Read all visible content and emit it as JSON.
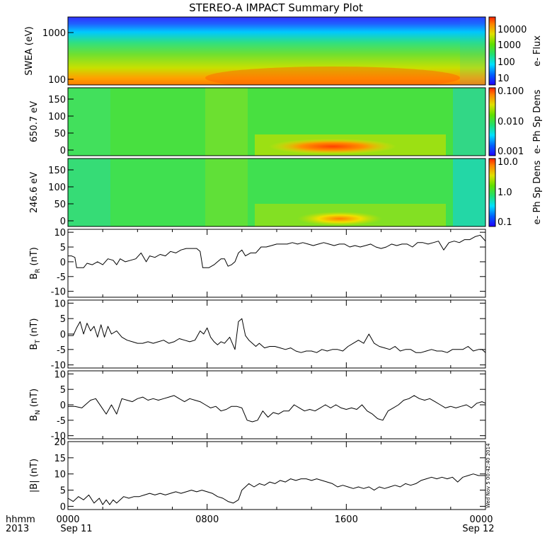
{
  "page": {
    "title": "STEREO-A IMPACT Summary Plot",
    "stamp": "Wed Nov  5 00:42:40 2014"
  },
  "footer": {
    "left_top": "hhmm",
    "left_bottom": "2013",
    "ticks": [
      {
        "time": "0000",
        "date": "Sep 11"
      },
      {
        "time": "0800",
        "date": ""
      },
      {
        "time": "1600",
        "date": ""
      },
      {
        "time": "0000",
        "date": "Sep 12"
      }
    ]
  },
  "chart_data": [
    {
      "type": "heatmap",
      "ylabel": "SWEA (eV)",
      "yscale": "log",
      "ylim": [
        90,
        2000
      ],
      "yticks": [
        "100",
        "1000"
      ],
      "colorbar": {
        "label": "e- Flux",
        "scale": "log",
        "range": [
          5,
          60000
        ],
        "ticks": [
          "10",
          "100",
          "1000",
          "10000"
        ]
      },
      "colors": {
        "low": "#2020ff",
        "mid": "#40e040",
        "high": "#ff6000"
      }
    },
    {
      "type": "heatmap",
      "ylabel": "650.7 eV",
      "ylim": [
        0,
        180
      ],
      "yticks": [
        "0",
        "50",
        "100",
        "150"
      ],
      "colorbar": {
        "label": "e- Ph Sp Dens",
        "scale": "log",
        "range": [
          0.001,
          0.1
        ],
        "ticks": [
          "0.001",
          "0.010",
          "0.100"
        ]
      }
    },
    {
      "type": "heatmap",
      "ylabel": "246.6 eV",
      "ylim": [
        0,
        180
      ],
      "yticks": [
        "0",
        "50",
        "100",
        "150"
      ],
      "colorbar": {
        "label": "e- Ph Sp Dens",
        "scale": "log",
        "range": [
          0.1,
          10
        ],
        "ticks": [
          "0.1",
          "1.0",
          "10.0"
        ]
      }
    },
    {
      "type": "line",
      "ylabel": "B",
      "ylabel_sub": "R",
      "ylabel_unit": " (nT)",
      "ylim": [
        -12,
        11
      ],
      "yticks": [
        "-10",
        "-5",
        "0",
        "5",
        "10"
      ],
      "x_hours": [
        0,
        0.2,
        0.4,
        0.5,
        0.9,
        1.1,
        1.4,
        1.7,
        2.0,
        2.3,
        2.6,
        2.8,
        3.0,
        3.3,
        3.6,
        3.9,
        4.2,
        4.5,
        4.7,
        5.0,
        5.3,
        5.6,
        5.9,
        6.2,
        6.5,
        6.8,
        7.1,
        7.4,
        7.6,
        7.75,
        7.9,
        8.1,
        8.4,
        8.6,
        8.8,
        9.0,
        9.2,
        9.4,
        9.6,
        9.8,
        10.0,
        10.2,
        10.5,
        10.8,
        11.1,
        11.4,
        11.7,
        12.0,
        12.3,
        12.6,
        12.9,
        13.2,
        13.5,
        13.8,
        14.1,
        14.4,
        14.7,
        15.0,
        15.3,
        15.6,
        15.9,
        16.2,
        16.5,
        16.8,
        17.1,
        17.4,
        17.7,
        18.0,
        18.3,
        18.6,
        18.9,
        19.2,
        19.5,
        19.8,
        20.1,
        20.4,
        20.7,
        21.0,
        21.3,
        21.6,
        21.9,
        22.2,
        22.5,
        22.8,
        23.1,
        23.4,
        23.7,
        24.0
      ],
      "values": [
        2,
        2,
        1.5,
        -2,
        -2,
        -0.5,
        -1,
        0,
        -1,
        1,
        0.5,
        -1,
        1,
        0,
        0.5,
        1,
        3,
        0,
        2,
        1.5,
        2.5,
        2,
        3.5,
        3,
        4,
        4.5,
        4.5,
        4.5,
        3.5,
        -2,
        -2,
        -2,
        -1,
        0,
        1,
        1,
        -1.5,
        -1,
        0,
        3,
        4,
        2,
        3,
        3,
        5,
        5,
        5.5,
        6,
        6,
        6,
        6.5,
        6,
        6.5,
        6,
        5.5,
        6,
        6.5,
        6,
        5.5,
        6,
        6,
        5,
        5.5,
        5,
        5.5,
        6,
        5,
        4.5,
        5,
        6,
        5.5,
        6,
        6,
        5,
        6.5,
        6.5,
        6,
        6.5,
        7,
        4,
        6.5,
        7,
        6.5,
        7.5,
        7.5,
        8.5,
        9,
        7
      ]
    },
    {
      "type": "line",
      "ylabel": "B",
      "ylabel_sub": "T",
      "ylabel_unit": " (nT)",
      "ylim": [
        -11,
        11
      ],
      "yticks": [
        "-10",
        "-5",
        "0",
        "5",
        "10"
      ],
      "x_hours": [
        0,
        0.3,
        0.5,
        0.7,
        0.9,
        1.1,
        1.3,
        1.5,
        1.7,
        1.9,
        2.1,
        2.3,
        2.5,
        2.8,
        3.1,
        3.4,
        3.7,
        4.0,
        4.3,
        4.6,
        4.9,
        5.2,
        5.5,
        5.8,
        6.1,
        6.4,
        6.7,
        7.0,
        7.3,
        7.6,
        7.8,
        8.0,
        8.2,
        8.4,
        8.6,
        8.8,
        9.0,
        9.3,
        9.6,
        9.8,
        10.0,
        10.2,
        10.4,
        10.6,
        10.8,
        11.0,
        11.3,
        11.6,
        11.9,
        12.2,
        12.5,
        12.8,
        13.1,
        13.4,
        13.7,
        14.0,
        14.3,
        14.6,
        14.9,
        15.2,
        15.5,
        15.8,
        16.1,
        16.4,
        16.7,
        17.0,
        17.3,
        17.6,
        17.9,
        18.2,
        18.5,
        18.8,
        19.1,
        19.4,
        19.7,
        20.0,
        20.3,
        20.6,
        20.9,
        21.2,
        21.5,
        21.8,
        22.1,
        22.4,
        22.7,
        23.0,
        23.3,
        23.6,
        23.8,
        24.0
      ],
      "values": [
        -0.5,
        -0.5,
        2,
        4,
        0,
        3.5,
        1,
        2.5,
        -1,
        3,
        -1,
        2.5,
        0,
        1,
        -1,
        -2,
        -2.5,
        -3,
        -3,
        -2.5,
        -3,
        -2.5,
        -2,
        -3,
        -2.5,
        -1.5,
        -2,
        -2.5,
        -2,
        1,
        0,
        2,
        -1,
        -2.5,
        -3.5,
        -2.5,
        -3,
        -1,
        -5,
        4,
        5,
        -0.5,
        -2,
        -3,
        -4,
        -3,
        -4.5,
        -4,
        -4,
        -4.5,
        -5,
        -4.5,
        -5.5,
        -6,
        -5.5,
        -5.5,
        -6,
        -5,
        -5.5,
        -5,
        -5,
        -5.5,
        -4,
        -3,
        -2,
        -3,
        0,
        -3,
        -4,
        -4.5,
        -5,
        -4,
        -5.5,
        -5,
        -5,
        -6,
        -6,
        -5.5,
        -5,
        -5.5,
        -5.5,
        -6,
        -5,
        -5,
        -5,
        -4,
        -5.5,
        -5,
        -5,
        -6
      ]
    },
    {
      "type": "line",
      "ylabel": "B",
      "ylabel_sub": "N",
      "ylabel_unit": " (nT)",
      "ylim": [
        -11,
        11
      ],
      "yticks": [
        "-10",
        "-5",
        "0",
        "5",
        "10"
      ],
      "x_hours": [
        0,
        0.4,
        0.8,
        1.0,
        1.3,
        1.6,
        1.9,
        2.2,
        2.5,
        2.8,
        3.1,
        3.4,
        3.7,
        4.0,
        4.3,
        4.6,
        4.9,
        5.2,
        5.5,
        5.8,
        6.1,
        6.4,
        6.7,
        7.0,
        7.3,
        7.6,
        7.9,
        8.2,
        8.5,
        8.8,
        9.1,
        9.4,
        9.7,
        10.0,
        10.3,
        10.6,
        10.9,
        11.2,
        11.5,
        11.8,
        12.1,
        12.4,
        12.7,
        13.0,
        13.3,
        13.6,
        13.9,
        14.2,
        14.5,
        14.8,
        15.1,
        15.4,
        15.7,
        16.0,
        16.3,
        16.6,
        16.9,
        17.2,
        17.5,
        17.8,
        18.1,
        18.4,
        18.7,
        19.0,
        19.3,
        19.6,
        19.9,
        20.2,
        20.5,
        20.8,
        21.1,
        21.4,
        21.7,
        22.0,
        22.3,
        22.6,
        22.9,
        23.2,
        23.5,
        23.8,
        24.0
      ],
      "values": [
        -0.5,
        -0.5,
        -1,
        0,
        1.5,
        2,
        -0.5,
        -3,
        0,
        -3,
        2,
        1.5,
        1,
        2,
        2.5,
        1.5,
        2,
        1.5,
        2,
        2.5,
        3,
        2,
        1,
        2,
        1.5,
        1,
        0,
        -1,
        -0.5,
        -2,
        -1.5,
        -0.5,
        -0.5,
        -1,
        -5,
        -5.5,
        -5,
        -2,
        -4,
        -2.5,
        -3,
        -2,
        -2,
        0,
        -1,
        -2,
        -1.5,
        -2,
        -1,
        0,
        -1,
        0,
        -1,
        -1.5,
        -1,
        -1.5,
        0,
        -2,
        -3,
        -4.5,
        -5,
        -2,
        -1,
        0,
        1.5,
        2,
        3,
        2,
        1.5,
        2,
        1,
        0,
        -1,
        -0.5,
        -1,
        -0.5,
        0,
        -1,
        0.5,
        1,
        0.5
      ]
    },
    {
      "type": "line",
      "ylabel": "|B|",
      "ylabel_sub": "",
      "ylabel_unit": " (nT)",
      "ylim": [
        -1,
        20
      ],
      "yticks": [
        "0",
        "5",
        "10",
        "15",
        "20"
      ],
      "x_hours": [
        0,
        0.3,
        0.6,
        0.9,
        1.2,
        1.5,
        1.8,
        2.0,
        2.2,
        2.4,
        2.6,
        2.8,
        3.0,
        3.2,
        3.5,
        3.8,
        4.1,
        4.4,
        4.7,
        5.0,
        5.3,
        5.6,
        5.9,
        6.2,
        6.5,
        6.8,
        7.1,
        7.4,
        7.7,
        8.0,
        8.3,
        8.6,
        8.9,
        9.2,
        9.5,
        9.8,
        10.0,
        10.2,
        10.4,
        10.7,
        11.0,
        11.3,
        11.6,
        11.9,
        12.2,
        12.5,
        12.8,
        13.1,
        13.4,
        13.7,
        14.0,
        14.3,
        14.6,
        14.9,
        15.2,
        15.5,
        15.8,
        16.1,
        16.4,
        16.7,
        17.0,
        17.3,
        17.6,
        17.9,
        18.2,
        18.5,
        18.8,
        19.1,
        19.4,
        19.7,
        20.0,
        20.3,
        20.6,
        20.9,
        21.2,
        21.5,
        21.8,
        22.1,
        22.4,
        22.7,
        23.0,
        23.3,
        23.6,
        24.0
      ],
      "values": [
        2.5,
        1.5,
        3,
        2,
        3.5,
        1,
        2.5,
        0.5,
        2,
        0.5,
        2,
        1,
        2,
        3,
        2.5,
        3,
        3,
        3.5,
        4,
        3.5,
        4,
        3.5,
        4,
        4.5,
        4,
        4.5,
        5,
        4.5,
        5,
        4.5,
        4,
        3,
        2.5,
        1.5,
        1,
        2,
        5,
        6,
        7,
        6,
        7,
        6.5,
        7.5,
        7,
        8,
        7.5,
        8.5,
        8,
        8.5,
        8.5,
        8,
        8.5,
        8,
        7.5,
        7,
        6,
        6.5,
        6,
        5.5,
        6,
        5.5,
        6,
        5,
        6,
        5.5,
        6,
        6.5,
        6,
        7,
        6.5,
        7,
        8,
        8.5,
        9,
        8.5,
        9,
        8.5,
        9,
        7.5,
        9,
        9.5,
        10,
        9.5,
        9.5
      ]
    }
  ]
}
